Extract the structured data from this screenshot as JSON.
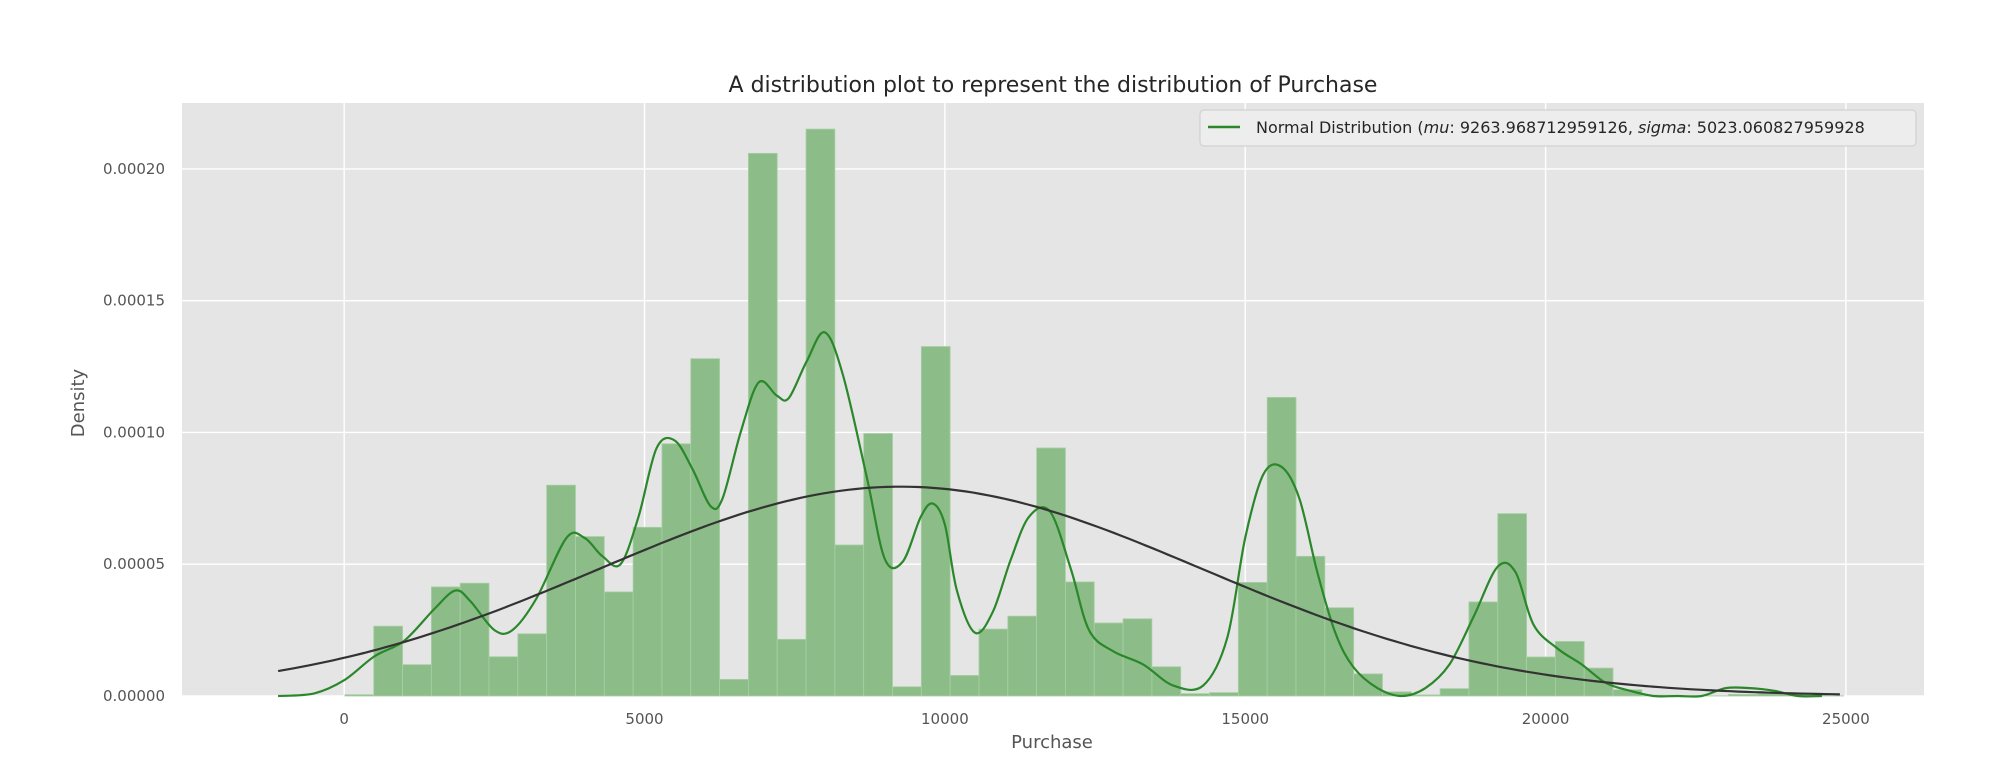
{
  "chart_data": {
    "type": "bar",
    "title": "A distribution plot to represent the distribution of Purchase",
    "xlabel": "Purchase",
    "ylabel": "Density",
    "xlim": [
      -2700,
      26300
    ],
    "ylim": [
      0,
      0.000225
    ],
    "grid": true,
    "legend_position": "top-right",
    "xticks": [
      0,
      5000,
      10000,
      15000,
      20000,
      25000
    ],
    "xtick_labels": [
      "0",
      "5000",
      "10000",
      "15000",
      "20000",
      "25000"
    ],
    "yticks": [
      0,
      5e-05,
      0.0001,
      0.00015,
      0.0002
    ],
    "ytick_labels": [
      "0.00000",
      "0.00005",
      "0.00010",
      "0.00015",
      "0.00020"
    ],
    "legend": {
      "label_prefix": "Normal Distribution (",
      "mu_symbol": "mu",
      "mu_value": ": 9263.968712959126, ",
      "sigma_symbol": "sigma",
      "sigma_value": ": 5023.060827959928"
    },
    "histogram": {
      "bin_start": 12,
      "bin_width": 479.8,
      "values": [
        5e-07,
        2.65e-05,
        1.19e-05,
        4.14e-05,
        4.28e-05,
        1.49e-05,
        2.36e-05,
        8e-05,
        6.05e-05,
        3.95e-05,
        6.4e-05,
        9.57e-05,
        0.000128,
        6.3e-06,
        0.0002059,
        2.15e-05,
        0.0002151,
        5.73e-05,
        9.96e-05,
        3.5e-06,
        0.0001326,
        7.8e-06,
        2.54e-05,
        3.03e-05,
        9.41e-05,
        4.33e-05,
        2.77e-05,
        2.93e-05,
        1.11e-05,
        9e-07,
        1.3e-06,
        4.31e-05,
        0.0001133,
        5.3e-05,
        3.35e-05,
        8.4e-06,
        1.6e-06,
        4e-07,
        2.8e-06,
        3.57e-05,
        6.92e-05,
        1.48e-05,
        2.07e-05,
        1.06e-05,
        2.4e-06,
        3e-07,
        1e-07,
        1e-07,
        6e-07,
        8e-07,
        5e-07,
        1e-07
      ],
      "color": "#8cbd88"
    },
    "series": [
      {
        "name": "KDE",
        "color": "#2a872a",
        "x": [
          -1100,
          -500,
          0,
          500,
          1000,
          1500,
          1850,
          2100,
          2500,
          2800,
          3200,
          3700,
          4000,
          4300,
          4600,
          4900,
          5200,
          5500,
          5800,
          6100,
          6300,
          6600,
          6900,
          7200,
          7400,
          7700,
          8000,
          8300,
          8700,
          9000,
          9300,
          9600,
          9800,
          10000,
          10200,
          10500,
          10800,
          11100,
          11400,
          11750,
          12100,
          12400,
          12800,
          13300,
          13800,
          14300,
          14700,
          15000,
          15300,
          15600,
          15900,
          16200,
          16500,
          16800,
          17200,
          17600,
          18000,
          18400,
          18800,
          19200,
          19500,
          19800,
          20200,
          20600,
          21000,
          21400,
          21800,
          22200,
          22600,
          23000,
          23400,
          23800,
          24200,
          24600
        ],
        "y": [
          0,
          1e-06,
          6e-06,
          1.5e-05,
          2.1e-05,
          3.3e-05,
          4e-05,
          3.6e-05,
          2.5e-05,
          2.5e-05,
          3.7e-05,
          6e-05,
          6e-05,
          5.3e-05,
          5e-05,
          6.8e-05,
          9.4e-05,
          9.7e-05,
          8.6e-05,
          7.2e-05,
          7.5e-05,
          0.0001,
          0.000119,
          0.000114,
          0.000113,
          0.000127,
          0.000138,
          0.000122,
          8.3e-05,
          5.2e-05,
          5.1e-05,
          6.8e-05,
          7.3e-05,
          6.5e-05,
          4e-05,
          2.4e-05,
          3.2e-05,
          5.2e-05,
          6.8e-05,
          7e-05,
          4.8e-05,
          2.5e-05,
          1.7e-05,
          1.2e-05,
          4e-06,
          4e-06,
          2.2e-05,
          6e-05,
          8.4e-05,
          8.7e-05,
          7.5e-05,
          4.7e-05,
          2.4e-05,
          1.1e-05,
          3e-06,
          0.0,
          3e-06,
          1.2e-05,
          3e-05,
          4.9e-05,
          4.7e-05,
          2.7e-05,
          1.8e-05,
          1.2e-05,
          5e-06,
          2e-06,
          0.0,
          0.0,
          0.0,
          3e-06,
          3e-06,
          2e-06,
          0.0,
          0.0
        ]
      },
      {
        "name": "Normal Distribution",
        "color": "#333333",
        "mu": 9263.968712959126,
        "sigma": 5023.060827959928,
        "x_range": [
          -1100,
          24900
        ]
      }
    ]
  }
}
